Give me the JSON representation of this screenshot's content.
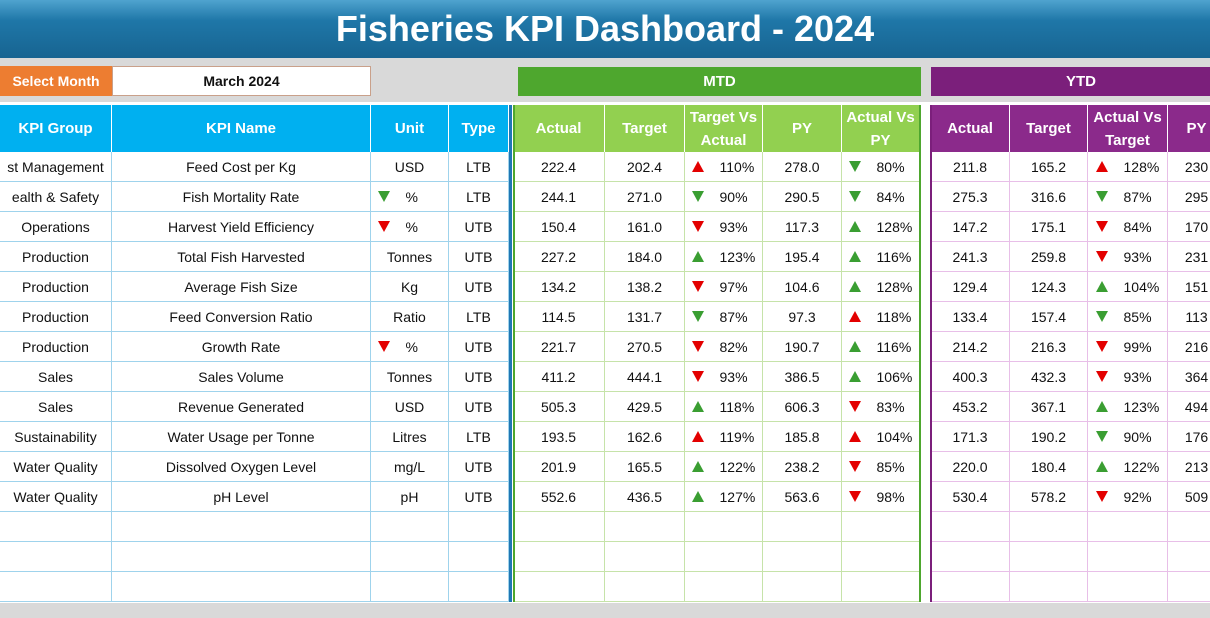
{
  "header": {
    "title": "Fisheries KPI Dashboard - 2024"
  },
  "controls": {
    "select_month_label": "Select Month",
    "month": "March 2024"
  },
  "sections": {
    "mtd": "MTD",
    "ytd": "YTD"
  },
  "table": {
    "columns": {
      "info": [
        "KPI Group",
        "KPI Name",
        "Unit",
        "Type"
      ],
      "mtd": [
        "Actual",
        "Target",
        "Target Vs Actual",
        "PY",
        "Actual Vs PY"
      ],
      "ytd": [
        "Actual",
        "Target",
        "Actual Vs Target",
        "PY"
      ]
    },
    "rows": [
      [
        "st Management",
        "Feed Cost per Kg",
        "USD",
        "LTB",
        "222.4",
        "202.4",
        "110%",
        "278.0",
        "80%",
        "211.8",
        "165.2",
        "128%",
        "230"
      ],
      [
        "ealth & Safety",
        "Fish Mortality Rate",
        "%",
        "LTB",
        "244.1",
        "271.0",
        "90%",
        "290.5",
        "84%",
        "275.3",
        "316.6",
        "87%",
        "295"
      ],
      [
        "Operations",
        "Harvest Yield Efficiency",
        "%",
        "UTB",
        "150.4",
        "161.0",
        "93%",
        "117.3",
        "128%",
        "147.2",
        "175.1",
        "84%",
        "170"
      ],
      [
        "Production",
        "Total Fish Harvested",
        "Tonnes",
        "UTB",
        "227.2",
        "184.0",
        "123%",
        "195.4",
        "116%",
        "241.3",
        "259.8",
        "93%",
        "231"
      ],
      [
        "Production",
        "Average Fish Size",
        "Kg",
        "UTB",
        "134.2",
        "138.2",
        "97%",
        "104.6",
        "128%",
        "129.4",
        "124.3",
        "104%",
        "151"
      ],
      [
        "Production",
        "Feed Conversion Ratio",
        "Ratio",
        "LTB",
        "114.5",
        "131.7",
        "87%",
        "97.3",
        "118%",
        "133.4",
        "157.4",
        "85%",
        "113"
      ],
      [
        "Production",
        "Growth Rate",
        "%",
        "UTB",
        "221.7",
        "270.5",
        "82%",
        "190.7",
        "116%",
        "214.2",
        "216.3",
        "99%",
        "216"
      ],
      [
        "Sales",
        "Sales Volume",
        "Tonnes",
        "UTB",
        "411.2",
        "444.1",
        "93%",
        "386.5",
        "106%",
        "400.3",
        "432.3",
        "93%",
        "364"
      ],
      [
        "Sales",
        "Revenue Generated",
        "USD",
        "UTB",
        "505.3",
        "429.5",
        "118%",
        "606.3",
        "83%",
        "453.2",
        "367.1",
        "123%",
        "494"
      ],
      [
        "Sustainability",
        "Water Usage per Tonne",
        "Litres",
        "LTB",
        "193.5",
        "162.6",
        "119%",
        "185.8",
        "104%",
        "171.3",
        "190.2",
        "90%",
        "176"
      ],
      [
        "Water Quality",
        "Dissolved Oxygen Level",
        "mg/L",
        "UTB",
        "201.9",
        "165.5",
        "122%",
        "238.2",
        "85%",
        "220.0",
        "180.4",
        "122%",
        "213"
      ],
      [
        "Water Quality",
        "pH Level",
        "pH",
        "UTB",
        "552.6",
        "436.5",
        "127%",
        "563.6",
        "98%",
        "530.4",
        "578.2",
        "92%",
        "509"
      ]
    ]
  }
}
